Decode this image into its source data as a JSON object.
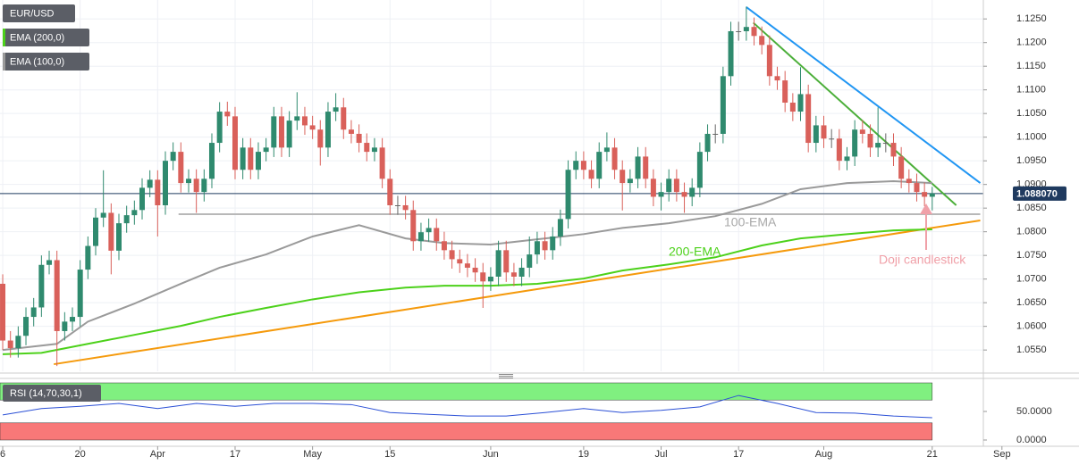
{
  "chart_data": {
    "type": "candlestick",
    "series": [
      {
        "name": "EUR/USD",
        "up_color": "#2f8a6e",
        "down_color": "#d9605a",
        "values": [
          [
            1.069,
            1.071,
            1.055,
            1.057
          ],
          [
            1.057,
            1.059,
            1.0534,
            1.0554
          ],
          [
            1.0554,
            1.06,
            1.0534,
            1.058
          ],
          [
            1.058,
            1.064,
            1.056,
            1.062
          ],
          [
            1.062,
            1.066,
            1.06,
            1.064
          ],
          [
            1.064,
            1.075,
            1.062,
            1.073
          ],
          [
            1.073,
            1.076,
            1.071,
            1.074
          ],
          [
            1.074,
            1.076,
            1.0516,
            1.059
          ],
          [
            1.059,
            1.063,
            1.057,
            1.061
          ],
          [
            1.061,
            1.064,
            1.059,
            1.062
          ],
          [
            1.062,
            1.074,
            1.06,
            1.072
          ],
          [
            1.072,
            1.079,
            1.07,
            1.077
          ],
          [
            1.077,
            1.085,
            1.075,
            1.083
          ],
          [
            1.083,
            1.093,
            1.081,
            1.084
          ],
          [
            1.084,
            1.086,
            1.071,
            1.076
          ],
          [
            1.076,
            1.0838,
            1.074,
            1.0818
          ],
          [
            1.0818,
            1.0855,
            1.0798,
            1.0835
          ],
          [
            1.0835,
            1.0866,
            1.0815,
            1.0846
          ],
          [
            1.0846,
            1.0913,
            1.0826,
            1.0893
          ],
          [
            1.0893,
            1.093,
            1.0873,
            1.091
          ],
          [
            1.091,
            1.093,
            1.079,
            1.0856
          ],
          [
            1.0856,
            1.097,
            1.0836,
            1.095
          ],
          [
            1.095,
            1.0989,
            1.093,
            1.0969
          ],
          [
            1.0969,
            1.0989,
            1.0883,
            1.0903
          ],
          [
            1.0903,
            1.0932,
            1.0883,
            1.0912
          ],
          [
            1.0912,
            1.0932,
            1.084,
            1.0884
          ],
          [
            1.0884,
            1.0932,
            1.0864,
            1.0912
          ],
          [
            1.0912,
            1.1008,
            1.0892,
            1.0988
          ],
          [
            1.0988,
            1.1074,
            1.0968,
            1.1054
          ],
          [
            1.1054,
            1.1075,
            1.1024,
            1.1044
          ],
          [
            1.1044,
            1.1064,
            1.0911,
            1.0931
          ],
          [
            1.0931,
            1.0998,
            1.0911,
            1.0978
          ],
          [
            1.0978,
            1.0998,
            1.0911,
            1.0931
          ],
          [
            1.0931,
            1.0989,
            1.0911,
            1.0969
          ],
          [
            1.0969,
            1.0998,
            1.0949,
            1.0978
          ],
          [
            1.0978,
            1.1064,
            1.0958,
            1.1044
          ],
          [
            1.1044,
            1.1064,
            1.0958,
            1.0978
          ],
          [
            1.0978,
            1.1055,
            1.0958,
            1.1035
          ],
          [
            1.1035,
            1.1095,
            1.1015,
            1.1044
          ],
          [
            1.1044,
            1.1064,
            1.1005,
            1.1025
          ],
          [
            1.1025,
            1.1045,
            1.0996,
            1.1016
          ],
          [
            1.1016,
            1.1036,
            1.094,
            1.0978
          ],
          [
            1.0978,
            1.1074,
            1.0958,
            1.1054
          ],
          [
            1.1054,
            1.1093,
            1.1034,
            1.1063
          ],
          [
            1.1063,
            1.1083,
            1.0996,
            1.1016
          ],
          [
            1.1016,
            1.1036,
            1.0987,
            1.1007
          ],
          [
            1.1007,
            1.1027,
            1.0968,
            1.0988
          ],
          [
            1.0988,
            1.1008,
            1.0949,
            1.0969
          ],
          [
            1.0969,
            1.0998,
            1.0949,
            1.0978
          ],
          [
            1.0978,
            1.0998,
            1.0892,
            1.0912
          ],
          [
            1.0912,
            1.0932,
            1.0836,
            1.0856
          ],
          [
            1.0856,
            1.0876,
            1.0836,
            1.0856
          ],
          [
            1.0856,
            1.0876,
            1.0826,
            1.0846
          ],
          [
            1.0846,
            1.0866,
            1.076,
            1.078
          ],
          [
            1.078,
            1.0819,
            1.076,
            1.0799
          ],
          [
            1.0799,
            1.0828,
            1.0779,
            1.0808
          ],
          [
            1.0808,
            1.0828,
            1.076,
            1.078
          ],
          [
            1.078,
            1.08,
            1.0741,
            1.0761
          ],
          [
            1.0761,
            1.0781,
            1.0722,
            1.0742
          ],
          [
            1.0742,
            1.0762,
            1.0713,
            1.0733
          ],
          [
            1.0733,
            1.0753,
            1.0704,
            1.0724
          ],
          [
            1.0724,
            1.0744,
            1.0694,
            1.0714
          ],
          [
            1.0714,
            1.0734,
            1.0639,
            1.0695
          ],
          [
            1.0695,
            1.0725,
            1.0675,
            1.0705
          ],
          [
            1.0705,
            1.0781,
            1.0685,
            1.0761
          ],
          [
            1.0761,
            1.0781,
            1.0694,
            1.0714
          ],
          [
            1.0714,
            1.0734,
            1.0685,
            1.0705
          ],
          [
            1.0705,
            1.0744,
            1.0685,
            1.0724
          ],
          [
            1.0724,
            1.079,
            1.0704,
            1.0752
          ],
          [
            1.0752,
            1.08,
            1.0732,
            1.078
          ],
          [
            1.078,
            1.08,
            1.0741,
            1.0761
          ],
          [
            1.0761,
            1.081,
            1.0741,
            1.079
          ],
          [
            1.079,
            1.0847,
            1.077,
            1.0827
          ],
          [
            1.0827,
            1.0951,
            1.0807,
            1.0931
          ],
          [
            1.0931,
            1.097,
            1.0911,
            1.095
          ],
          [
            1.095,
            1.097,
            1.0911,
            1.0931
          ],
          [
            1.0931,
            1.0951,
            1.0892,
            1.0912
          ],
          [
            1.0912,
            1.0989,
            1.0892,
            1.0969
          ],
          [
            1.0969,
            1.101,
            1.0949,
            1.0978
          ],
          [
            1.0978,
            1.0998,
            1.0911,
            1.0931
          ],
          [
            1.0931,
            1.0951,
            1.0845,
            1.0903
          ],
          [
            1.0903,
            1.0932,
            1.0883,
            1.0912
          ],
          [
            1.0912,
            1.0979,
            1.0892,
            1.0959
          ],
          [
            1.0959,
            1.0979,
            1.0892,
            1.0912
          ],
          [
            1.0912,
            1.0932,
            1.0854,
            1.0874
          ],
          [
            1.0874,
            1.0904,
            1.0845,
            1.0884
          ],
          [
            1.0884,
            1.0932,
            1.0864,
            1.0912
          ],
          [
            1.0912,
            1.0932,
            1.0864,
            1.0884
          ],
          [
            1.0884,
            1.0904,
            1.084,
            1.0874
          ],
          [
            1.0874,
            1.0913,
            1.0854,
            1.0893
          ],
          [
            1.0893,
            1.0989,
            1.0873,
            1.0969
          ],
          [
            1.0969,
            1.1027,
            1.0949,
            1.1007
          ],
          [
            1.1007,
            1.1027,
            1.0987,
            1.1007
          ],
          [
            1.1007,
            1.1149,
            1.0987,
            1.1129
          ],
          [
            1.1129,
            1.1244,
            1.1109,
            1.1224
          ],
          [
            1.1224,
            1.1244,
            1.1204,
            1.1224
          ],
          [
            1.1224,
            1.1276,
            1.1204,
            1.1233
          ],
          [
            1.1233,
            1.1253,
            1.1194,
            1.1214
          ],
          [
            1.1214,
            1.1234,
            1.1175,
            1.1195
          ],
          [
            1.1195,
            1.1215,
            1.1109,
            1.1129
          ],
          [
            1.1129,
            1.1149,
            1.11,
            1.112
          ],
          [
            1.112,
            1.114,
            1.1053,
            1.1073
          ],
          [
            1.1073,
            1.1093,
            1.1034,
            1.1054
          ],
          [
            1.1054,
            1.1148,
            1.1034,
            1.1091
          ],
          [
            1.1091,
            1.1111,
            1.0968,
            1.0988
          ],
          [
            1.0988,
            1.1045,
            1.0968,
            1.1025
          ],
          [
            1.1025,
            1.1045,
            1.0977,
            1.0997
          ],
          [
            1.0997,
            1.1017,
            1.0977,
            1.0997
          ],
          [
            1.0997,
            1.1017,
            1.093,
            1.095
          ],
          [
            1.095,
            1.0979,
            1.093,
            1.0959
          ],
          [
            1.0959,
            1.1036,
            1.0939,
            1.1016
          ],
          [
            1.1016,
            1.1036,
            1.0987,
            1.1007
          ],
          [
            1.1007,
            1.1027,
            1.0958,
            1.0978
          ],
          [
            1.0978,
            1.1063,
            1.0958,
            1.0988
          ],
          [
            1.0988,
            1.1008,
            1.0968,
            1.0988
          ],
          [
            1.0988,
            1.1008,
            1.0939,
            1.0959
          ],
          [
            1.0959,
            1.0979,
            1.0892,
            1.0912
          ],
          [
            1.0912,
            1.0932,
            1.0883,
            1.0903
          ],
          [
            1.0903,
            1.0923,
            1.0864,
            1.0884
          ],
          [
            1.0884,
            1.0904,
            1.0854,
            1.0874
          ],
          [
            1.0874,
            1.0895,
            1.0845,
            1.0881
          ]
        ]
      }
    ],
    "overlays": [
      {
        "name": "EMA (200,0)",
        "color": "#4cd11a",
        "x": [
          0,
          5,
          11,
          17,
          23,
          28,
          34,
          40,
          46,
          52,
          57,
          63,
          69,
          75,
          80,
          86,
          92,
          98,
          103,
          109,
          115,
          120
        ],
        "values": [
          1.0541,
          1.0544,
          1.0563,
          1.0582,
          1.0601,
          1.062,
          1.0639,
          1.0657,
          1.0672,
          1.0682,
          1.0686,
          1.0686,
          1.069,
          1.0701,
          1.0718,
          1.0731,
          1.0746,
          1.0771,
          1.0786,
          1.0795,
          1.0803,
          1.0805
        ]
      },
      {
        "name": "EMA (100,0)",
        "color": "#9a9a9a",
        "x": [
          0,
          7,
          11,
          17,
          23,
          28,
          34,
          40,
          46,
          52,
          57,
          63,
          69,
          75,
          80,
          86,
          92,
          98,
          103,
          109,
          115,
          120
        ],
        "values": [
          1.055,
          1.0563,
          1.061,
          1.0648,
          1.069,
          1.0724,
          1.0752,
          1.079,
          1.0814,
          1.0786,
          1.0776,
          1.0773,
          1.0784,
          1.0795,
          1.0808,
          1.0818,
          1.0833,
          1.0859,
          1.089,
          1.0903,
          1.0907,
          1.0903
        ]
      }
    ],
    "trendlines": [
      {
        "color": "#f59a0c",
        "x": [
          6.6,
          126.2
        ],
        "values": [
          1.052,
          1.0824
        ]
      },
      {
        "color": "#4caf3a",
        "x": [
          96.9,
          123.1
        ],
        "values": [
          1.1242,
          1.0856
        ]
      },
      {
        "color": "#2196f3",
        "x": [
          96,
          126.2
        ],
        "values": [
          1.1275,
          1.0903
        ]
      },
      {
        "color": "#b8b8b8",
        "x": [
          22.7,
          126.2
        ],
        "values": [
          1.0837,
          1.0837
        ]
      }
    ],
    "annotations": [
      {
        "text": "100-EMA",
        "color": "#a8a8a8"
      },
      {
        "text": "200-EMA",
        "color": "#4cd11a"
      },
      {
        "text": "Doji candlestick",
        "color": "#f0a0a8"
      }
    ],
    "last_price": {
      "value": 1.08807,
      "label": "1.088070"
    },
    "xlim": [
      -0.35,
      126.6
    ],
    "xticks": [
      {
        "value": 0,
        "label": "6"
      },
      {
        "value": 10,
        "label": "20"
      },
      {
        "value": 20,
        "label": "Apr"
      },
      {
        "value": 30,
        "label": "17"
      },
      {
        "value": 40,
        "label": "May"
      },
      {
        "value": 50,
        "label": "15"
      },
      {
        "value": 63,
        "label": "Jun"
      },
      {
        "value": 75,
        "label": "19"
      },
      {
        "value": 85,
        "label": "Jul"
      },
      {
        "value": 95,
        "label": "17"
      },
      {
        "value": 106,
        "label": "Aug"
      },
      {
        "value": 120,
        "label": "21"
      },
      {
        "value": 129,
        "label": "Sep"
      }
    ],
    "ylim": [
      1.0505,
      1.129
    ],
    "yticks": [
      {
        "value": 1.125,
        "label": "1.1250"
      },
      {
        "value": 1.12,
        "label": "1.1200"
      },
      {
        "value": 1.115,
        "label": "1.1150"
      },
      {
        "value": 1.11,
        "label": "1.1100"
      },
      {
        "value": 1.105,
        "label": "1.1050"
      },
      {
        "value": 1.1,
        "label": "1.1000"
      },
      {
        "value": 1.095,
        "label": "1.0950"
      },
      {
        "value": 1.09,
        "label": "1.0900"
      },
      {
        "value": 1.085,
        "label": "1.0850"
      },
      {
        "value": 1.08,
        "label": "1.0800"
      },
      {
        "value": 1.075,
        "label": "1.0750"
      },
      {
        "value": 1.07,
        "label": "1.0700"
      },
      {
        "value": 1.065,
        "label": "1.0650"
      },
      {
        "value": 1.06,
        "label": "1.0600"
      },
      {
        "value": 1.055,
        "label": "1.0550"
      }
    ],
    "grid": true,
    "rsi": {
      "name": "RSI (14,70,30,1)",
      "color": "#2a4fd6",
      "x": [
        0,
        5,
        10,
        15,
        20,
        25,
        30,
        35,
        40,
        45,
        50,
        55,
        60,
        65,
        70,
        75,
        80,
        85,
        90,
        95,
        100,
        105,
        110,
        115,
        120
      ],
      "values": [
        44,
        55,
        59,
        64,
        55,
        64,
        59,
        64,
        64,
        62,
        48,
        45,
        42,
        42,
        48,
        55,
        48,
        52,
        58,
        78,
        64,
        48,
        47,
        42,
        39
      ],
      "ylim": [
        0,
        100
      ],
      "bands": [
        {
          "from": 70,
          "to": 100,
          "color": "#80f080"
        },
        {
          "from": 0,
          "to": 30,
          "color": "#f87878"
        }
      ],
      "yticks": [
        {
          "value": 50,
          "label": "50.0000"
        },
        {
          "value": 0,
          "label": "0.0000"
        }
      ]
    }
  }
}
